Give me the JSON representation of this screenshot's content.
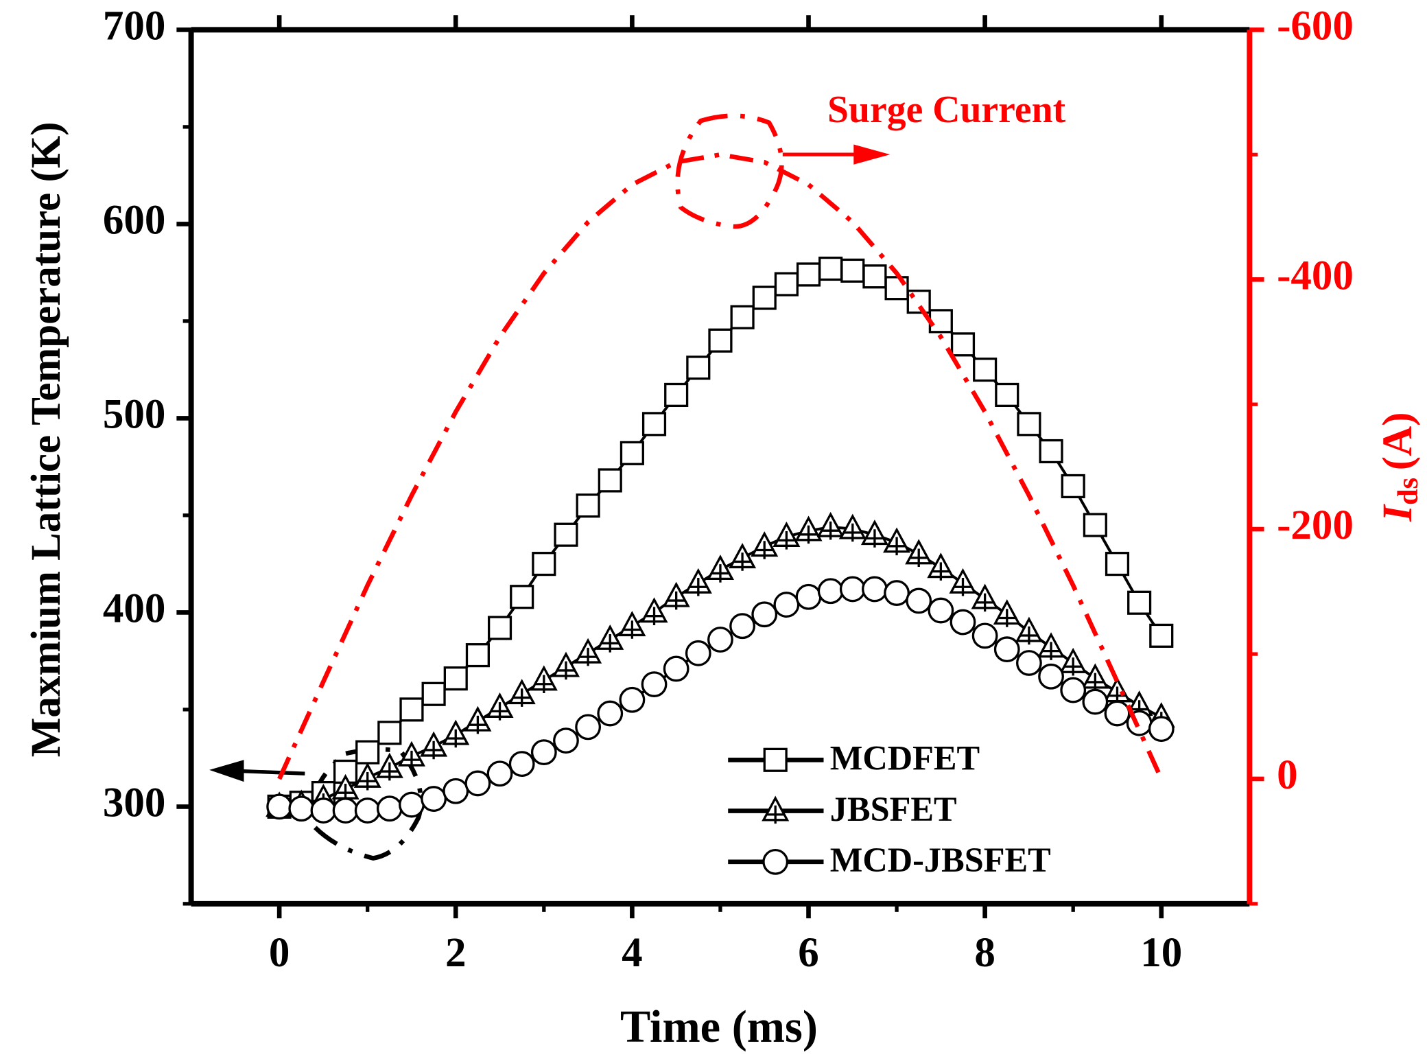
{
  "chart_data": {
    "type": "line",
    "xlabel": "Time (ms)",
    "ylabel": "Maxmium Lattice Temperature (K)",
    "y2label": {
      "symbol": "I",
      "subscript": "ds",
      "unit": "(A)"
    },
    "annotation": "Surge Current",
    "xlim": [
      -1,
      11
    ],
    "xticks": [
      0,
      2,
      4,
      6,
      8,
      10
    ],
    "ylim": [
      250,
      700
    ],
    "yticks": [
      300,
      400,
      500,
      600,
      700
    ],
    "y2lim": [
      100,
      -600
    ],
    "y2ticks": [
      0,
      -200,
      -400,
      -600
    ],
    "legend": "lower center",
    "series": [
      {
        "name": "MCDFET",
        "color": "#000000",
        "marker": "square",
        "x": [
          0,
          0.25,
          0.5,
          0.75,
          1,
          1.25,
          1.5,
          1.75,
          2,
          2.25,
          2.5,
          2.75,
          3,
          3.25,
          3.5,
          3.75,
          4,
          4.25,
          4.5,
          4.75,
          5,
          5.25,
          5.5,
          5.75,
          6,
          6.25,
          6.5,
          6.75,
          7,
          7.25,
          7.5,
          7.75,
          8,
          8.25,
          8.5,
          8.75,
          9,
          9.25,
          9.5,
          9.75,
          10
        ],
        "values": [
          300,
          302,
          307,
          318,
          328,
          338,
          350,
          358,
          366,
          378,
          392,
          408,
          425,
          440,
          455,
          468,
          482,
          497,
          512,
          526,
          540,
          552,
          562,
          569,
          574,
          577,
          576,
          573,
          567,
          560,
          550,
          538,
          525,
          512,
          497,
          483,
          465,
          445,
          425,
          405,
          388
        ]
      },
      {
        "name": "JBSFET",
        "color": "#000000",
        "marker": "triangle",
        "x": [
          0,
          0.25,
          0.5,
          0.75,
          1,
          1.25,
          1.5,
          1.75,
          2,
          2.25,
          2.5,
          2.75,
          3,
          3.25,
          3.5,
          3.75,
          4,
          4.25,
          4.5,
          4.75,
          5,
          5.25,
          5.5,
          5.75,
          6,
          6.25,
          6.5,
          6.75,
          7,
          7.25,
          7.5,
          7.75,
          8,
          8.25,
          8.5,
          8.75,
          9,
          9.25,
          9.5,
          9.75,
          10
        ],
        "values": [
          300,
          301,
          304,
          309,
          315,
          320,
          326,
          331,
          337,
          344,
          351,
          358,
          365,
          372,
          379,
          386,
          393,
          400,
          408,
          415,
          422,
          428,
          434,
          439,
          442,
          444,
          443,
          440,
          436,
          430,
          423,
          415,
          407,
          399,
          390,
          382,
          374,
          366,
          359,
          352,
          346
        ]
      },
      {
        "name": "MCD-JBSFET",
        "color": "#000000",
        "marker": "circle",
        "x": [
          0,
          0.25,
          0.5,
          0.75,
          1,
          1.25,
          1.5,
          1.75,
          2,
          2.25,
          2.5,
          2.75,
          3,
          3.25,
          3.5,
          3.75,
          4,
          4.25,
          4.5,
          4.75,
          5,
          5.25,
          5.5,
          5.75,
          6,
          6.25,
          6.5,
          6.75,
          7,
          7.25,
          7.5,
          7.75,
          8,
          8.25,
          8.5,
          8.75,
          9,
          9.25,
          9.5,
          9.75,
          10
        ],
        "values": [
          300,
          299,
          298,
          298,
          298,
          299,
          301,
          304,
          308,
          312,
          317,
          322,
          328,
          334,
          341,
          348,
          355,
          363,
          371,
          379,
          386,
          393,
          399,
          404,
          408,
          411,
          412,
          412,
          410,
          406,
          401,
          395,
          388,
          381,
          374,
          367,
          360,
          354,
          348,
          343,
          340
        ]
      },
      {
        "name": null,
        "color": "#ff0000",
        "axis": "y2",
        "linestyle": "dashdot",
        "x": [
          0,
          0.5,
          1,
          1.5,
          2,
          2.5,
          3,
          3.5,
          4,
          4.5,
          5,
          5.5,
          6,
          6.5,
          7,
          7.5,
          8,
          8.5,
          9,
          9.5,
          10
        ],
        "values": [
          0,
          -78,
          -155,
          -227,
          -294,
          -354,
          -405,
          -446,
          -476,
          -494,
          -500,
          -494,
          -476,
          -446,
          -405,
          -354,
          -294,
          -227,
          -155,
          -78,
          0
        ]
      }
    ]
  }
}
